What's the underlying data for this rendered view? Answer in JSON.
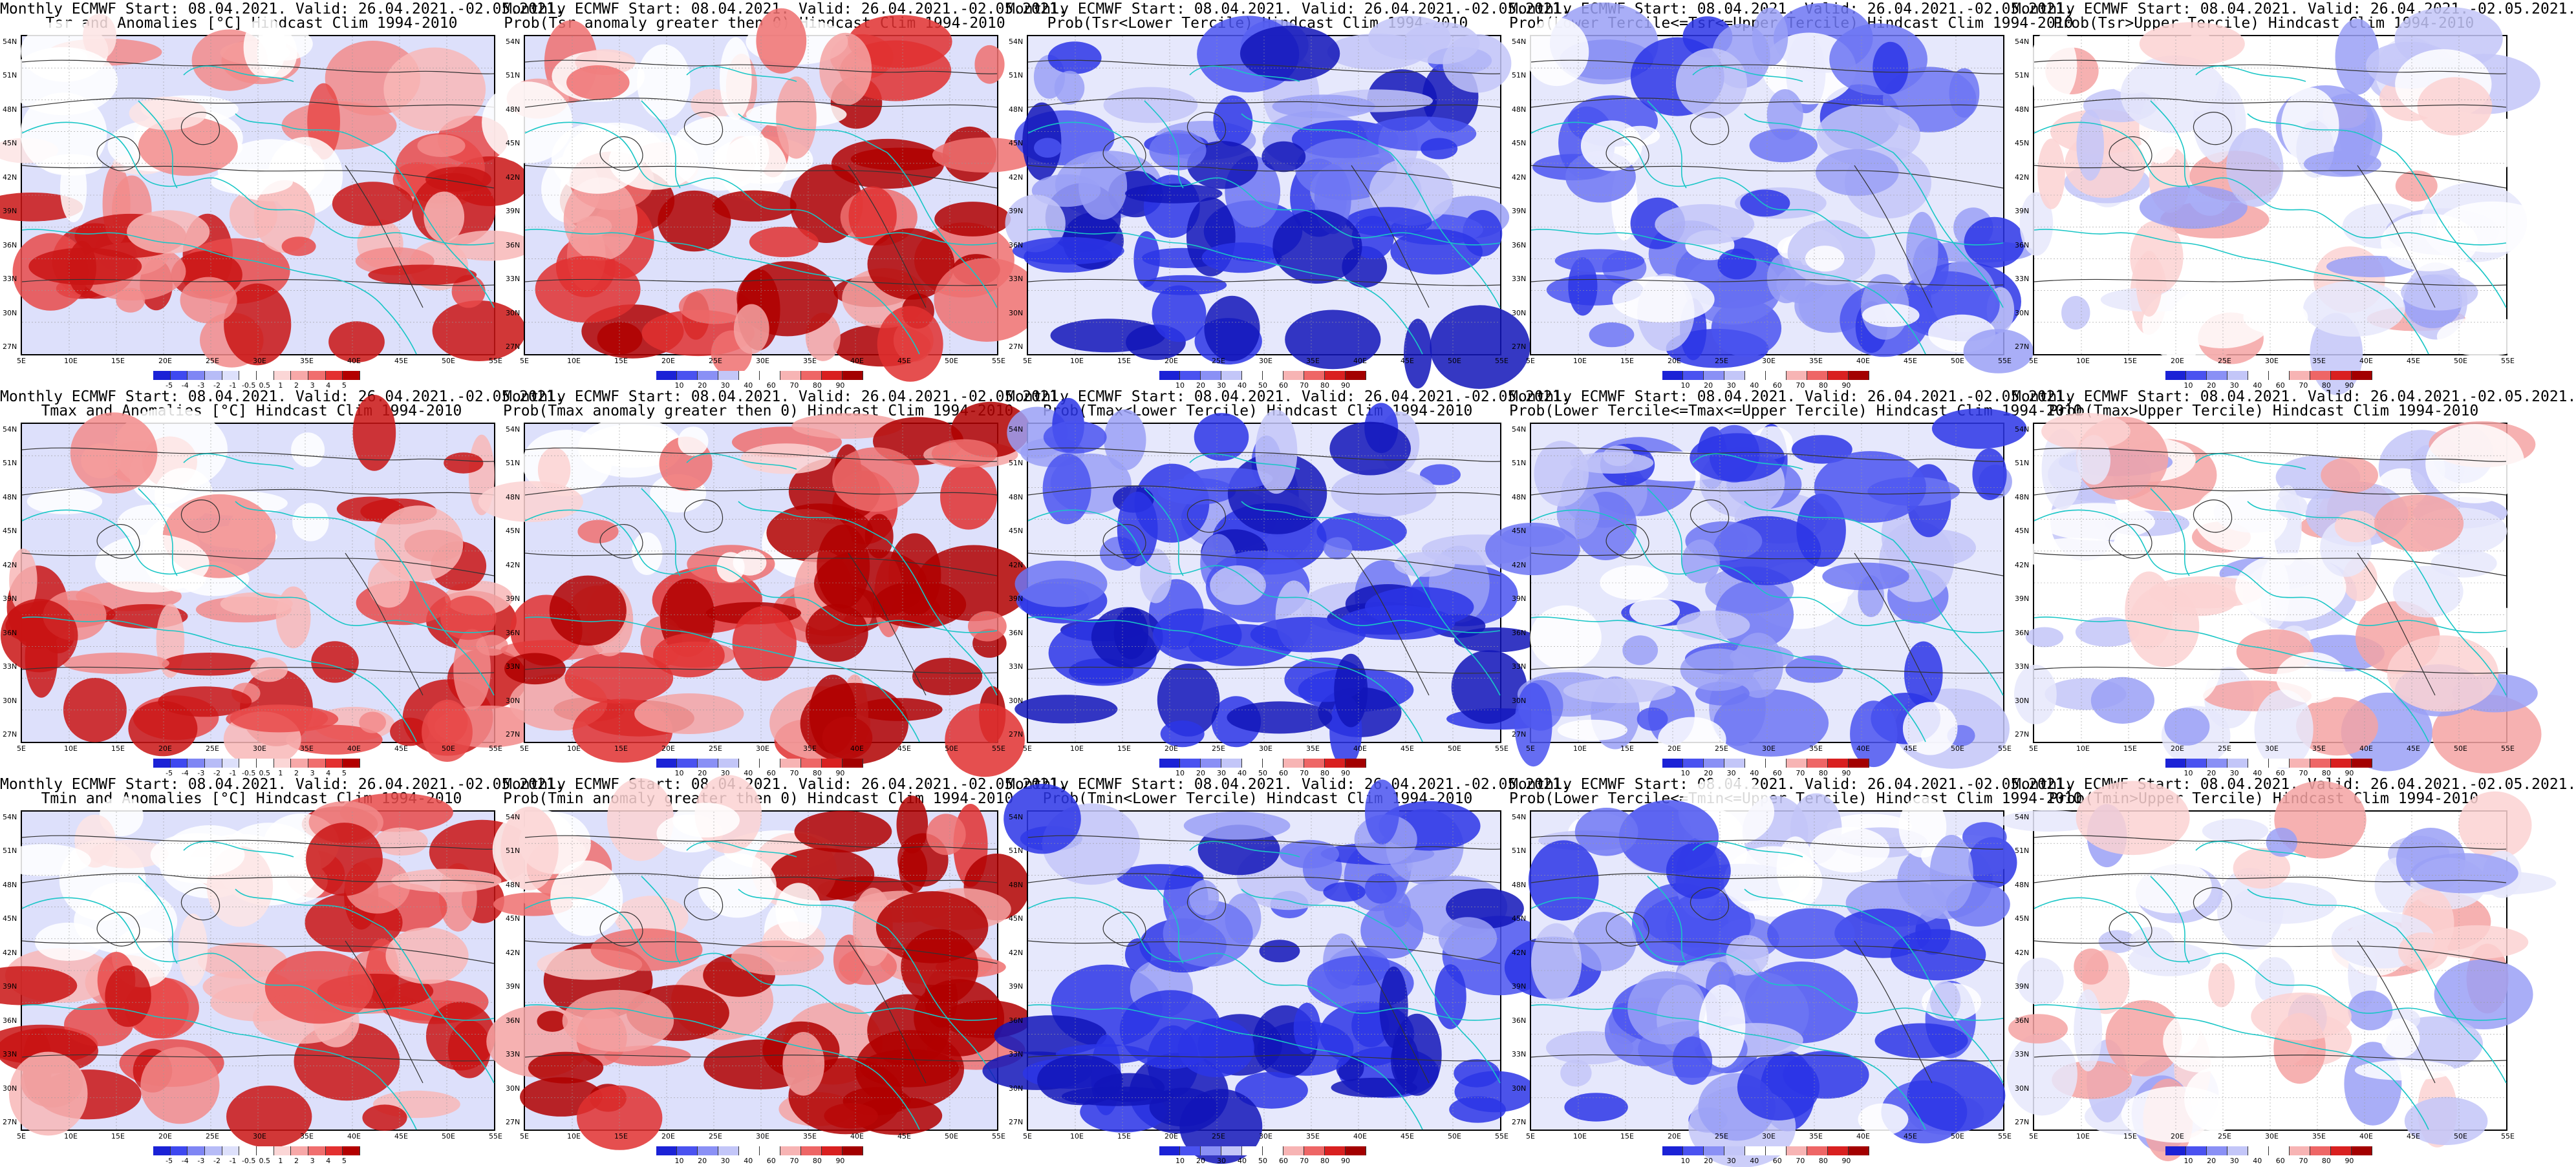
{
  "colors": {
    "diverging": [
      "#1b22d6",
      "#3e48f0",
      "#7f86f4",
      "#b7bcf7",
      "#dde0fb",
      "#ffffff",
      "#ffffff",
      "#fbd6d6",
      "#f7a8a8",
      "#f06e6e",
      "#e33030",
      "#b30000"
    ],
    "prob": [
      "#1b22d6",
      "#4a52f0",
      "#8a90f5",
      "#c3c6f8",
      "#ffffff",
      "#ffffff",
      "#f7b4b4",
      "#ee6666",
      "#d92020",
      "#a30000"
    ],
    "coast": "#19c6c6",
    "contour": "#333333"
  },
  "axes": {
    "lat": [
      "54N",
      "51N",
      "48N",
      "45N",
      "42N",
      "39N",
      "36N",
      "33N",
      "30N",
      "27N"
    ],
    "lon": [
      "5E",
      "10E",
      "15E",
      "20E",
      "25E",
      "30E",
      "35E",
      "40E",
      "45E",
      "50E",
      "55E"
    ]
  },
  "panels": [
    {
      "id": "tsr-anom",
      "kind": "anom",
      "title1": "Monthly ECMWF Start: 08.04.2021. Valid: 26.04.2021.-02.05.2021.",
      "title2": "Tsr and Anomalies [°C] Hindcast Clim 1994-2010",
      "ticks": [
        "-5",
        "-4",
        "-3",
        "-2",
        "-1",
        "-0.5",
        "0.5",
        "1",
        "2",
        "3",
        "4",
        "5"
      ]
    },
    {
      "id": "tsr-prob-gt0",
      "kind": "prob",
      "title1": "Monthly ECMWF Start: 08.04.2021. Valid: 26.04.2021.-02.05.2021.",
      "title2": "Prob(Tsr anomaly greater then 0) Hindcast Clim 1994-2010",
      "ticks": [
        "10",
        "20",
        "30",
        "40",
        "60",
        "70",
        "80",
        "90"
      ]
    },
    {
      "id": "tsr-prob-lower",
      "kind": "blue",
      "title1": "Monthly ECMWF Start: 08.04.2021. Valid: 26.04.2021.-02.05.2021.",
      "title2": "Prob(Tsr<Lower Tercile) Hindcast Clim 1994-2010",
      "ticks": [
        "10",
        "20",
        "30",
        "40",
        "50",
        "60",
        "70",
        "80",
        "90"
      ]
    },
    {
      "id": "tsr-prob-middle",
      "kind": "mixblue",
      "title1": "Monthly ECMWF Start: 08.04.2021. Valid: 26.04.2021.-02.05.2021.",
      "title2": "Prob(Lower Tercile<=Tsr<=Upper Tercile) Hindcast Clim 1994-2010",
      "ticks": [
        "10",
        "20",
        "30",
        "40",
        "60",
        "70",
        "80",
        "90"
      ]
    },
    {
      "id": "tsr-prob-upper",
      "kind": "pale",
      "title1": "Monthly ECMWF Start: 08.04.2021. Valid: 26.04.2021.-02.05.2021.",
      "title2": "Prob(Tsr>Upper Tercile) Hindcast Clim 1994-2010",
      "ticks": [
        "10",
        "20",
        "30",
        "40",
        "60",
        "70",
        "80",
        "90"
      ]
    },
    {
      "id": "tmax-anom",
      "kind": "anom",
      "title1": "Monthly ECMWF Start: 08.04.2021. Valid: 26.04.2021.-02.05.2021.",
      "title2": "Tmax and Anomalies [°C] Hindcast Clim 1994-2010",
      "ticks": [
        "-5",
        "-4",
        "-3",
        "-2",
        "-1",
        "-0.5",
        "0.5",
        "1",
        "2",
        "3",
        "4",
        "5"
      ]
    },
    {
      "id": "tmax-prob-gt0",
      "kind": "prob",
      "title1": "Monthly ECMWF Start: 08.04.2021. Valid: 26.04.2021.-02.05.2021.",
      "title2": "Prob(Tmax anomaly greater then 0) Hindcast Clim 1994-2010",
      "ticks": [
        "10",
        "20",
        "30",
        "40",
        "60",
        "70",
        "80",
        "90"
      ]
    },
    {
      "id": "tmax-prob-lower",
      "kind": "blue",
      "title1": "Monthly ECMWF Start: 08.04.2021. Valid: 26.04.2021.-02.05.2021.",
      "title2": "Prob(Tmax<Lower Tercile) Hindcast Clim 1994-2010",
      "ticks": [
        "10",
        "20",
        "30",
        "40",
        "50",
        "60",
        "70",
        "80",
        "90"
      ]
    },
    {
      "id": "tmax-prob-middle",
      "kind": "mixblue",
      "title1": "Monthly ECMWF Start: 08.04.2021. Valid: 26.04.2021.-02.05.2021.",
      "title2": "Prob(Lower Tercile<=Tmax<=Upper Tercile) Hindcast Clim 1994-2010",
      "ticks": [
        "10",
        "20",
        "30",
        "40",
        "60",
        "70",
        "80",
        "90"
      ]
    },
    {
      "id": "tmax-prob-upper",
      "kind": "pale",
      "title1": "Monthly ECMWF Start: 08.04.2021. Valid: 26.04.2021.-02.05.2021.",
      "title2": "Prob(Tmax>Upper Tercile) Hindcast Clim 1994-2010",
      "ticks": [
        "10",
        "20",
        "30",
        "40",
        "60",
        "70",
        "80",
        "90"
      ]
    },
    {
      "id": "tmin-anom",
      "kind": "anom",
      "title1": "Monthly ECMWF Start: 08.04.2021. Valid: 26.04.2021.-02.05.2021.",
      "title2": "Tmin and Anomalies [°C] Hindcast Clim 1994-2010",
      "ticks": [
        "-5",
        "-4",
        "-3",
        "-2",
        "-1",
        "-0.5",
        "0.5",
        "1",
        "2",
        "3",
        "4",
        "5"
      ]
    },
    {
      "id": "tmin-prob-gt0",
      "kind": "prob",
      "title1": "Monthly ECMWF Start: 08.04.2021. Valid: 26.04.2021.-02.05.2021.",
      "title2": "Prob(Tmin anomaly greater then 0) Hindcast Clim 1994-2010",
      "ticks": [
        "10",
        "20",
        "30",
        "40",
        "60",
        "70",
        "80",
        "90"
      ]
    },
    {
      "id": "tmin-prob-lower",
      "kind": "blue",
      "title1": "Monthly ECMWF Start: 08.04.2021. Valid: 26.04.2021.-02.05.2021.",
      "title2": "Prob(Tmin<Lower Tercile) Hindcast Clim 1994-2010",
      "ticks": [
        "10",
        "20",
        "30",
        "40",
        "50",
        "60",
        "70",
        "80",
        "90"
      ]
    },
    {
      "id": "tmin-prob-middle",
      "kind": "mixblue",
      "title1": "Monthly ECMWF Start: 08.04.2021. Valid: 26.04.2021.-02.05.2021.",
      "title2": "Prob(Lower Tercile<=Tmin<=Upper Tercile) Hindcast Clim 1994-2010",
      "ticks": [
        "10",
        "20",
        "30",
        "40",
        "60",
        "70",
        "80",
        "90"
      ]
    },
    {
      "id": "tmin-prob-upper",
      "kind": "pale",
      "title1": "Monthly ECMWF Start: 08.04.2021. Valid: 26.04.2021.-02.05.2021.",
      "title2": "Prob(Tmin>Upper Tercile) Hindcast Clim 1994-2010",
      "ticks": [
        "10",
        "20",
        "30",
        "40",
        "60",
        "70",
        "80",
        "90"
      ]
    }
  ]
}
